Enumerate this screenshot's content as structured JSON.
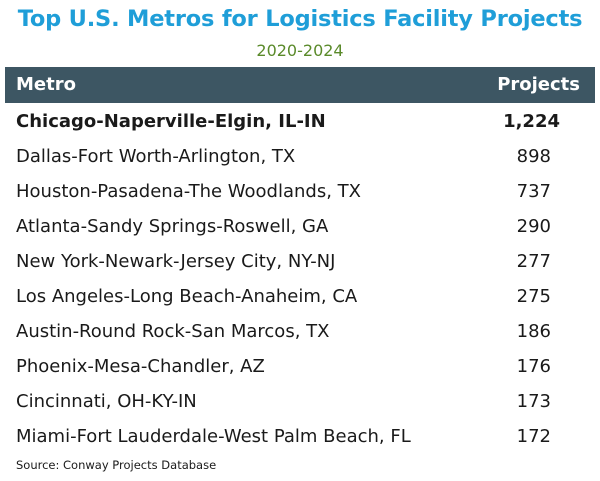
{
  "chart_data": {
    "type": "table",
    "title": "Top U.S. Metros for Logistics Facility Projects",
    "subtitle": "2020-2024",
    "columns": [
      "Metro",
      "Projects"
    ],
    "rows": [
      {
        "metro": "Chicago-Naperville-Elgin, IL-IN",
        "projects": "1,224",
        "highlight": true
      },
      {
        "metro": "Dallas-Fort Worth-Arlington, TX",
        "projects": "898",
        "highlight": false
      },
      {
        "metro": "Houston-Pasadena-The Woodlands, TX",
        "projects": "737",
        "highlight": false
      },
      {
        "metro": "Atlanta-Sandy Springs-Roswell, GA",
        "projects": "290",
        "highlight": false
      },
      {
        "metro": "New York-Newark-Jersey City, NY-NJ",
        "projects": "277",
        "highlight": false
      },
      {
        "metro": "Los Angeles-Long Beach-Anaheim, CA",
        "projects": "275",
        "highlight": false
      },
      {
        "metro": "Austin-Round Rock-San Marcos, TX",
        "projects": "186",
        "highlight": false
      },
      {
        "metro": "Phoenix-Mesa-Chandler, AZ",
        "projects": "176",
        "highlight": false
      },
      {
        "metro": "Cincinnati, OH-KY-IN",
        "projects": "173",
        "highlight": false
      },
      {
        "metro": "Miami-Fort Lauderdale-West Palm Beach, FL",
        "projects": "172",
        "highlight": false
      }
    ],
    "source": "Source: Conway Projects Database"
  },
  "colors": {
    "title": "#1f9ed8",
    "subtitle": "#5a8a2a",
    "header_bg": "#3d5663",
    "header_text": "#ffffff",
    "text": "#1a1a1a"
  }
}
